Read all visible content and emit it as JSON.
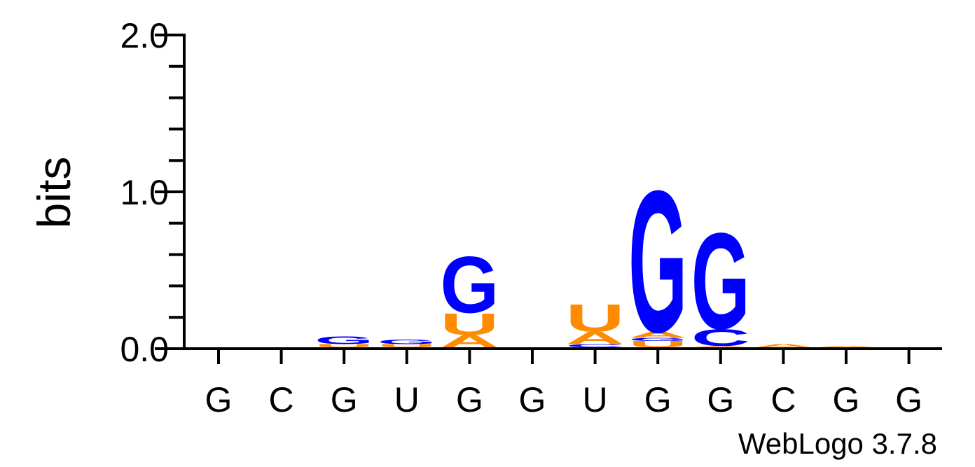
{
  "chart_data": {
    "type": "sequence-logo",
    "ylabel": "bits",
    "ylim": [
      0,
      2
    ],
    "yticks": [
      {
        "value": 0,
        "label": "0.0"
      },
      {
        "value": 1,
        "label": "1.0"
      },
      {
        "value": 2,
        "label": "2.0"
      }
    ],
    "positions": [
      "G",
      "C",
      "G",
      "U",
      "G",
      "G",
      "U",
      "G",
      "G",
      "C",
      "G",
      "G"
    ],
    "colors": {
      "G": "#0000ff",
      "C": "#0000ff",
      "A": "#ff8c00",
      "U": "#ff8c00"
    },
    "stacks": [
      [],
      [],
      [
        {
          "base": "U",
          "bits": 0.02
        },
        {
          "base": "G",
          "bits": 0.05
        }
      ],
      [
        {
          "base": "U",
          "bits": 0.02
        },
        {
          "base": "G",
          "bits": 0.03
        }
      ],
      [
        {
          "base": "A",
          "bits": 0.08
        },
        {
          "base": "U",
          "bits": 0.14
        },
        {
          "base": "G",
          "bits": 0.37
        }
      ],
      [],
      [
        {
          "base": "C",
          "bits": 0.02
        },
        {
          "base": "A",
          "bits": 0.08
        },
        {
          "base": "U",
          "bits": 0.18
        }
      ],
      [
        {
          "base": "U",
          "bits": 0.04
        },
        {
          "base": "G",
          "bits": 0.02
        },
        {
          "base": "A",
          "bits": 0.04
        },
        {
          "base": "G",
          "bits": 0.93
        }
      ],
      [
        {
          "base": "A",
          "bits": 0.01
        },
        {
          "base": "C",
          "bits": 0.11
        },
        {
          "base": "G",
          "bits": 0.63
        }
      ],
      [
        {
          "base": "A",
          "bits": 0.02
        }
      ],
      [
        {
          "base": "A",
          "bits": 0.01
        }
      ],
      []
    ]
  },
  "credit": "WebLogo 3.7.8"
}
